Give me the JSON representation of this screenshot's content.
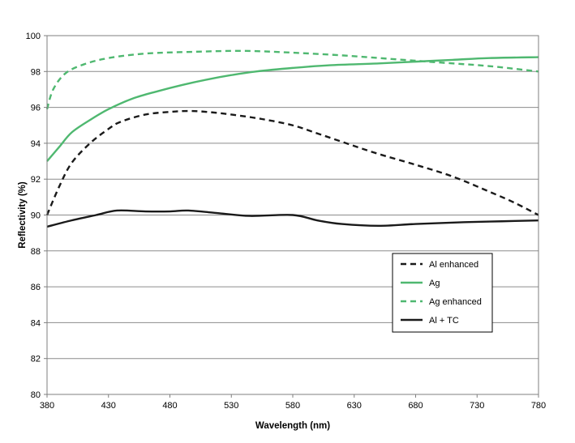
{
  "chart_data": {
    "type": "line",
    "title": "",
    "xlabel": "Wavelength (nm)",
    "ylabel": "Reflectivity (%)",
    "xlim": [
      380,
      780
    ],
    "ylim": [
      80,
      100
    ],
    "x_ticks": [
      380,
      430,
      480,
      530,
      580,
      630,
      680,
      730,
      780
    ],
    "y_ticks": [
      80,
      82,
      84,
      86,
      88,
      90,
      92,
      94,
      96,
      98,
      100
    ],
    "grid": "horizontal",
    "legend_position": "lower-right",
    "series": [
      {
        "name": "Al enhanced",
        "color": "#1a1a1a",
        "style": "dashed",
        "points": [
          [
            380,
            90.0
          ],
          [
            390,
            91.6
          ],
          [
            400,
            92.9
          ],
          [
            415,
            94.0
          ],
          [
            430,
            94.8
          ],
          [
            440,
            95.2
          ],
          [
            460,
            95.6
          ],
          [
            480,
            95.75
          ],
          [
            495,
            95.8
          ],
          [
            510,
            95.75
          ],
          [
            530,
            95.6
          ],
          [
            555,
            95.35
          ],
          [
            580,
            95.0
          ],
          [
            600,
            94.55
          ],
          [
            630,
            93.85
          ],
          [
            650,
            93.4
          ],
          [
            680,
            92.8
          ],
          [
            710,
            92.15
          ],
          [
            740,
            91.3
          ],
          [
            760,
            90.7
          ],
          [
            780,
            90.0
          ]
        ]
      },
      {
        "name": "Ag",
        "color": "#4fb870",
        "style": "solid",
        "points": [
          [
            380,
            93.0
          ],
          [
            390,
            93.8
          ],
          [
            400,
            94.6
          ],
          [
            415,
            95.3
          ],
          [
            430,
            95.9
          ],
          [
            450,
            96.5
          ],
          [
            470,
            96.9
          ],
          [
            490,
            97.25
          ],
          [
            510,
            97.55
          ],
          [
            530,
            97.8
          ],
          [
            550,
            98.0
          ],
          [
            580,
            98.2
          ],
          [
            610,
            98.35
          ],
          [
            650,
            98.45
          ],
          [
            680,
            98.55
          ],
          [
            710,
            98.65
          ],
          [
            740,
            98.75
          ],
          [
            780,
            98.8
          ]
        ]
      },
      {
        "name": "Ag enhanced",
        "color": "#4fb870",
        "style": "dashed",
        "points": [
          [
            380,
            95.9
          ],
          [
            385,
            97.0
          ],
          [
            395,
            97.9
          ],
          [
            410,
            98.4
          ],
          [
            430,
            98.75
          ],
          [
            460,
            99.0
          ],
          [
            500,
            99.1
          ],
          [
            540,
            99.15
          ],
          [
            580,
            99.05
          ],
          [
            620,
            98.9
          ],
          [
            660,
            98.7
          ],
          [
            700,
            98.5
          ],
          [
            740,
            98.3
          ],
          [
            780,
            98.0
          ]
        ]
      },
      {
        "name": "Al + TC",
        "color": "#1a1a1a",
        "style": "solid",
        "points": [
          [
            380,
            89.35
          ],
          [
            400,
            89.7
          ],
          [
            420,
            90.0
          ],
          [
            437,
            90.25
          ],
          [
            460,
            90.2
          ],
          [
            480,
            90.2
          ],
          [
            495,
            90.25
          ],
          [
            520,
            90.1
          ],
          [
            545,
            89.95
          ],
          [
            580,
            90.0
          ],
          [
            600,
            89.7
          ],
          [
            620,
            89.5
          ],
          [
            650,
            89.4
          ],
          [
            680,
            89.5
          ],
          [
            720,
            89.6
          ],
          [
            750,
            89.65
          ],
          [
            780,
            89.7
          ]
        ]
      }
    ]
  }
}
